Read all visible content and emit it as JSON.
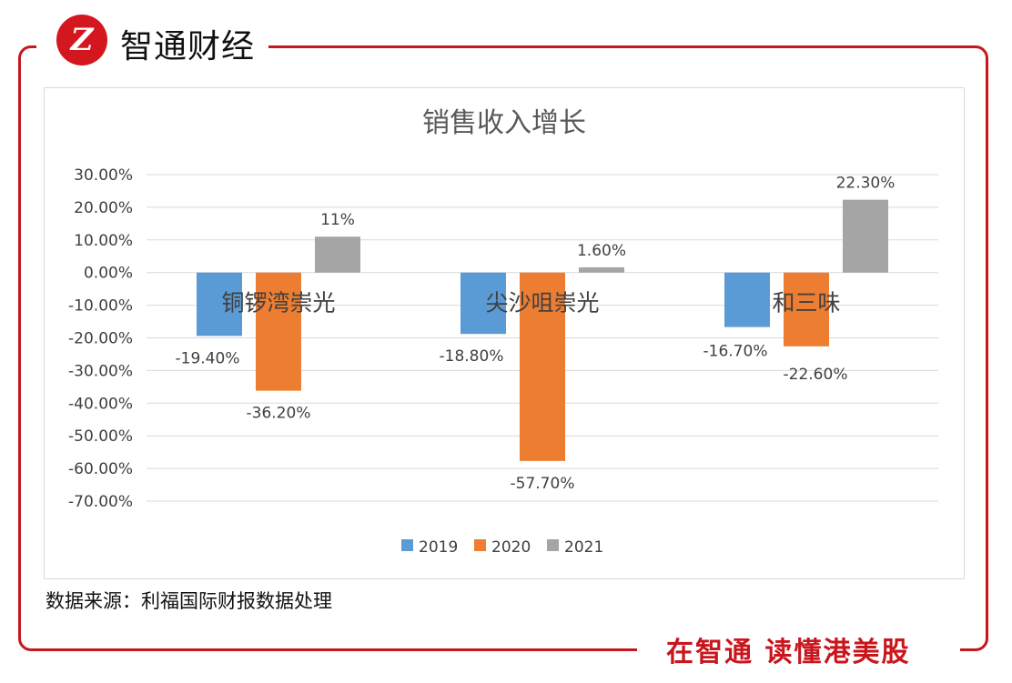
{
  "header": {
    "brand": "智通财经",
    "logo_text": "Z"
  },
  "footer": {
    "slogan": "在智通  读懂港美股",
    "source": "数据来源：利福国际财报数据处理"
  },
  "chart_data": {
    "type": "bar",
    "title": "销售收入增长",
    "categories": [
      "铜锣湾崇光",
      "尖沙咀崇光",
      "和三味"
    ],
    "series": [
      {
        "name": "2019",
        "color": "#5b9bd5",
        "values": [
          -19.4,
          -18.8,
          -16.7
        ],
        "labels": [
          "-19.40%",
          "-18.80%",
          "-16.70%"
        ]
      },
      {
        "name": "2020",
        "color": "#ed7d31",
        "values": [
          -36.2,
          -57.7,
          -22.6
        ],
        "labels": [
          "-36.20%",
          "-57.70%",
          "-22.60%"
        ]
      },
      {
        "name": "2021",
        "color": "#a5a5a5",
        "values": [
          11,
          1.6,
          22.3
        ],
        "labels": [
          "11%",
          "1.60%",
          "22.30%"
        ]
      }
    ],
    "ylim": [
      -70,
      30
    ],
    "yticks": [
      "30.00%",
      "20.00%",
      "10.00%",
      "0.00%",
      "-10.00%",
      "-20.00%",
      "-30.00%",
      "-40.00%",
      "-50.00%",
      "-60.00%",
      "-70.00%"
    ],
    "grid": true,
    "legend": "bottom"
  }
}
